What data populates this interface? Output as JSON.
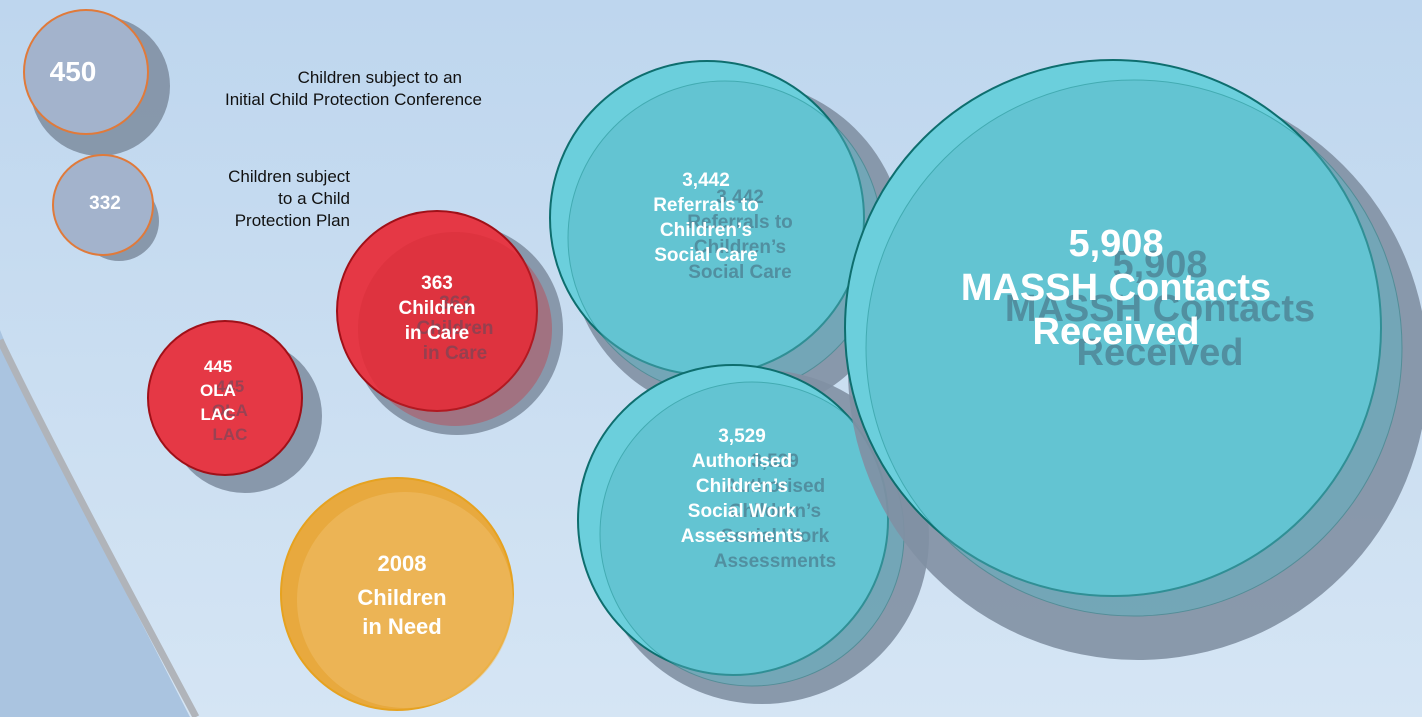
{
  "colors": {
    "background_top": "#bcd4ec",
    "background_bottom": "#d6e6f4",
    "bubble_teal": "#5fc7d2",
    "bubble_teal_outline": "#0e6e6e",
    "bubble_red": "#e3222e",
    "bubble_red_outline": "#a01018",
    "bubble_yellow": "#eeb75a",
    "bubble_yellow_outline": "#e6a220",
    "bubble_grey": "#a3b3cc",
    "bubble_grey_outline": "#e07a3a",
    "shadow": "#8190a3"
  },
  "labels": {
    "icpc": [
      "Children subject to an",
      "Initial Child Protection Conference"
    ],
    "cpp": [
      "Children subject",
      "to a Child",
      "Protection Plan"
    ]
  },
  "bubbles": {
    "icpc": {
      "value": "450"
    },
    "cpp": {
      "value": "332"
    },
    "cic": {
      "lines": [
        "363",
        "Children",
        "in Care"
      ]
    },
    "ola": {
      "lines": [
        "445",
        "OLA",
        "LAC"
      ]
    },
    "cin": {
      "lines": [
        "2008",
        "Children",
        "in Need"
      ]
    },
    "referrals": {
      "lines": [
        "3,442",
        "Referrals to",
        "Children’s",
        "Social Care"
      ]
    },
    "assessments": {
      "lines": [
        "3,529",
        "Authorised",
        "Children’s",
        "Social Work",
        "Assessments"
      ]
    },
    "massh": {
      "lines": [
        "5,908",
        "MASSH Contacts",
        "Received"
      ]
    }
  }
}
